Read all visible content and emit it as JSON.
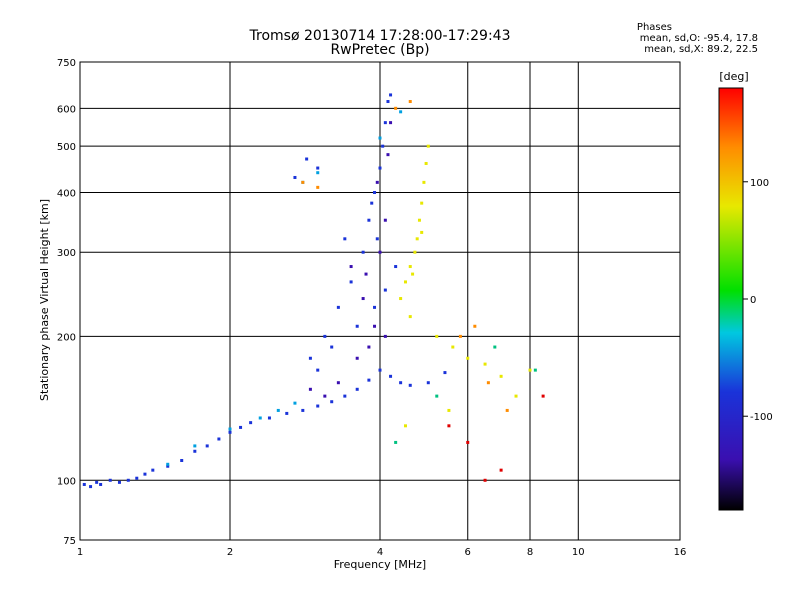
{
  "header": {
    "title_line1": "Tromsø 20130714 17:28:00-17:29:43",
    "title_line2": "RwPretec (Bp)"
  },
  "phases": {
    "heading": "Phases",
    "mean_o": "mean, sd,O: -95.4, 17.8",
    "mean_x": "mean, sd,X:  89.2, 22.5"
  },
  "chart_data": {
    "type": "scatter",
    "title": "Tromsø 20130714 17:28:00-17:29:43",
    "subtitle": "RwPretec (Bp)",
    "xlabel": "Frequency [MHz]",
    "ylabel": "Stationary phase Virtual Height [km]",
    "xscale": "log",
    "yscale": "log",
    "xlim": [
      1,
      16
    ],
    "ylim": [
      75,
      750
    ],
    "x_ticks": [
      1,
      2,
      4,
      6,
      8,
      10,
      16
    ],
    "x_tick_labels": [
      "1",
      "2",
      "4",
      "6",
      "8",
      "10",
      "16"
    ],
    "y_ticks": [
      75,
      100,
      200,
      300,
      400,
      500,
      600,
      750
    ],
    "y_tick_labels": [
      "75",
      "100",
      "200",
      "300",
      "400",
      "500",
      "600",
      "750"
    ],
    "grid": true,
    "colorbar": {
      "label": "[deg]",
      "range": [
        -180,
        180
      ],
      "ticks": [
        100,
        0,
        -100
      ],
      "tick_labels": [
        "100",
        "0",
        "-100"
      ]
    },
    "series": [
      {
        "color": "#1a33d9",
        "phase_deg": -100,
        "points": [
          [
            1.02,
            98
          ],
          [
            1.05,
            97
          ],
          [
            1.08,
            99
          ],
          [
            1.1,
            98
          ],
          [
            1.15,
            100
          ],
          [
            1.2,
            99
          ],
          [
            1.25,
            100
          ],
          [
            1.3,
            101
          ],
          [
            1.35,
            103
          ],
          [
            1.4,
            105
          ],
          [
            1.5,
            107
          ],
          [
            1.6,
            110
          ],
          [
            1.7,
            115
          ],
          [
            1.8,
            118
          ],
          [
            1.9,
            122
          ],
          [
            2.0,
            126
          ],
          [
            2.1,
            129
          ],
          [
            2.2,
            132
          ],
          [
            2.4,
            135
          ],
          [
            2.6,
            138
          ],
          [
            2.8,
            140
          ],
          [
            3.0,
            143
          ],
          [
            3.2,
            146
          ],
          [
            3.4,
            150
          ],
          [
            3.6,
            155
          ],
          [
            3.8,
            162
          ],
          [
            4.0,
            170
          ],
          [
            4.2,
            165
          ],
          [
            4.4,
            160
          ],
          [
            4.6,
            158
          ],
          [
            5.0,
            160
          ],
          [
            5.4,
            168
          ],
          [
            2.9,
            180
          ],
          [
            3.1,
            200
          ],
          [
            3.3,
            230
          ],
          [
            3.5,
            260
          ],
          [
            3.7,
            300
          ],
          [
            3.8,
            350
          ],
          [
            3.9,
            400
          ],
          [
            4.0,
            450
          ],
          [
            4.05,
            500
          ],
          [
            4.1,
            560
          ],
          [
            4.15,
            620
          ],
          [
            4.2,
            640
          ],
          [
            3.6,
            210
          ],
          [
            3.9,
            230
          ],
          [
            4.1,
            250
          ],
          [
            4.3,
            280
          ],
          [
            3.4,
            320
          ],
          [
            3.2,
            190
          ],
          [
            3.0,
            170
          ],
          [
            3.85,
            380
          ],
          [
            3.95,
            320
          ],
          [
            2.85,
            470
          ],
          [
            3.0,
            450
          ],
          [
            2.7,
            430
          ]
        ]
      },
      {
        "color": "#3a0fb0",
        "phase_deg": -130,
        "points": [
          [
            3.5,
            280
          ],
          [
            3.7,
            240
          ],
          [
            3.9,
            210
          ],
          [
            4.1,
            200
          ],
          [
            3.3,
            160
          ],
          [
            3.1,
            150
          ],
          [
            2.9,
            155
          ],
          [
            3.6,
            180
          ],
          [
            3.8,
            190
          ],
          [
            4.0,
            300
          ],
          [
            4.1,
            350
          ],
          [
            3.95,
            420
          ],
          [
            4.15,
            480
          ],
          [
            4.2,
            560
          ],
          [
            3.75,
            270
          ]
        ]
      },
      {
        "color": "#00a0e0",
        "phase_deg": -70,
        "points": [
          [
            2.0,
            128
          ],
          [
            2.3,
            135
          ],
          [
            2.5,
            140
          ],
          [
            2.7,
            145
          ],
          [
            1.7,
            118
          ],
          [
            1.5,
            108
          ],
          [
            4.4,
            590
          ],
          [
            4.0,
            520
          ],
          [
            2.8,
            420
          ],
          [
            3.0,
            440
          ]
        ]
      },
      {
        "color": "#e8e800",
        "phase_deg": 100,
        "points": [
          [
            4.4,
            240
          ],
          [
            4.5,
            260
          ],
          [
            4.6,
            280
          ],
          [
            4.7,
            300
          ],
          [
            4.75,
            320
          ],
          [
            4.8,
            350
          ],
          [
            4.85,
            380
          ],
          [
            4.9,
            420
          ],
          [
            4.95,
            460
          ],
          [
            5.0,
            500
          ],
          [
            4.6,
            220
          ],
          [
            5.2,
            200
          ],
          [
            5.6,
            190
          ],
          [
            6.0,
            180
          ],
          [
            6.5,
            175
          ],
          [
            7.0,
            165
          ],
          [
            7.5,
            150
          ],
          [
            4.5,
            130
          ],
          [
            5.5,
            140
          ],
          [
            8.0,
            170
          ],
          [
            4.65,
            270
          ],
          [
            4.85,
            330
          ]
        ]
      },
      {
        "color": "#ff8c00",
        "phase_deg": 140,
        "points": [
          [
            4.3,
            600
          ],
          [
            4.6,
            620
          ],
          [
            5.8,
            200
          ],
          [
            6.2,
            210
          ],
          [
            6.6,
            160
          ],
          [
            7.2,
            140
          ],
          [
            2.8,
            420
          ],
          [
            3.0,
            410
          ]
        ]
      },
      {
        "color": "#e00000",
        "phase_deg": 175,
        "points": [
          [
            7.0,
            105
          ],
          [
            6.5,
            100
          ],
          [
            5.5,
            130
          ],
          [
            6.0,
            120
          ],
          [
            8.5,
            150
          ]
        ]
      },
      {
        "color": "#00c080",
        "phase_deg": 30,
        "points": [
          [
            4.3,
            120
          ],
          [
            5.2,
            150
          ],
          [
            6.8,
            190
          ],
          [
            8.2,
            170
          ]
        ]
      }
    ]
  }
}
